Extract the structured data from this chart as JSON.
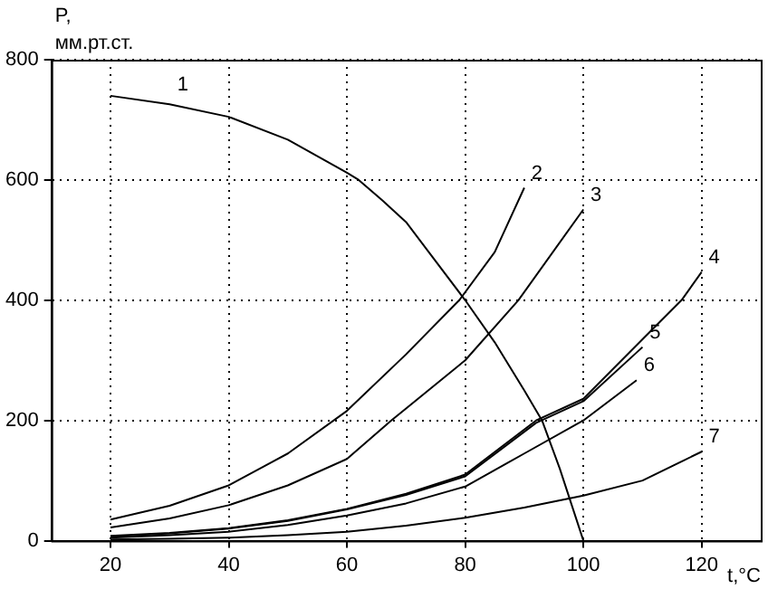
{
  "chart_data": {
    "type": "line",
    "xlabel": "t,°C",
    "ylabel": "P, мм.рт.ст.",
    "xlim": [
      10,
      130
    ],
    "xticks": [
      20,
      40,
      60,
      80,
      100,
      120
    ],
    "ylim": [
      0,
      800
    ],
    "yticks": [
      0,
      200,
      400,
      600,
      800
    ],
    "grid": true,
    "legend": false,
    "marker": "none",
    "line_style": "solid",
    "series": [
      {
        "name": "1",
        "color": "#000000",
        "x": [
          20,
          30,
          40,
          50,
          60,
          62,
          66,
          70,
          80,
          85,
          90,
          93,
          96,
          100
        ],
        "values": [
          740,
          726,
          705,
          667,
          612,
          600,
          566,
          530,
          400,
          330,
          250,
          200,
          120,
          0
        ]
      },
      {
        "name": "2",
        "color": "#000000",
        "x": [
          20,
          30,
          40,
          50,
          60,
          70,
          79,
          85,
          90
        ],
        "values": [
          35,
          58,
          92,
          145,
          216,
          310,
          400,
          480,
          587
        ]
      },
      {
        "name": "3",
        "color": "#000000",
        "x": [
          20,
          30,
          40,
          50,
          60,
          67.5,
          70,
          80,
          89,
          100
        ],
        "values": [
          22,
          37,
          59,
          92,
          136,
          200,
          220,
          300,
          400,
          551
        ]
      },
      {
        "name": "4",
        "color": "#000000",
        "x": [
          20,
          30,
          40,
          50,
          60,
          70,
          80,
          92,
          100,
          110,
          116.6,
          120
        ],
        "values": [
          8,
          13,
          21,
          34,
          53,
          78,
          110,
          200,
          236,
          335,
          400,
          447
        ]
      },
      {
        "name": "5",
        "color": "#000000",
        "x": [
          20,
          30,
          40,
          50,
          60,
          70,
          80,
          92,
          100,
          110
        ],
        "values": [
          7,
          12,
          20,
          33,
          52,
          76,
          107,
          196,
          232,
          322
        ]
      },
      {
        "name": "6",
        "color": "#000000",
        "x": [
          20,
          30,
          40,
          50,
          60,
          70,
          80,
          90,
          100,
          109
        ],
        "values": [
          5,
          9,
          15,
          26,
          42,
          62,
          90,
          145,
          200,
          267
        ]
      },
      {
        "name": "7",
        "color": "#000000",
        "x": [
          20,
          30,
          40,
          50,
          60,
          70,
          80,
          90,
          100,
          110,
          120
        ],
        "values": [
          2,
          3,
          5,
          9,
          15,
          25,
          38,
          55,
          75,
          100,
          148
        ]
      }
    ]
  }
}
